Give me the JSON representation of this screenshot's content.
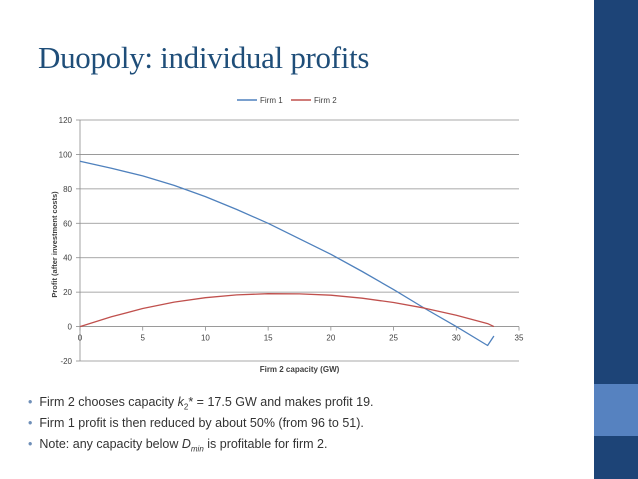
{
  "slide": {
    "title": "Duopoly: individual profits"
  },
  "colors": {
    "title": "#1f4e79",
    "sidebar": [
      "#1d4477",
      "#1d4477",
      "#5682c0",
      "#1d4477"
    ],
    "firm1": "#4f81bd",
    "firm2": "#c0504d"
  },
  "bullets": [
    {
      "pre": "Firm 2 chooses capacity ",
      "var": "k",
      "sub": "2",
      "post": "* = 17.5 GW and makes profit 19."
    },
    {
      "pre": "Firm 1 profit is then reduced by about 50% (from 96 to 51).",
      "var": "",
      "sub": "",
      "post": ""
    },
    {
      "pre": "Note: any capacity below ",
      "var": "D",
      "sub": "min",
      "post": " is profitable for firm 2."
    }
  ],
  "chart_data": {
    "type": "line",
    "title": "",
    "xlabel": "Firm 2 capacity (GW)",
    "ylabel": "Profit (after investment costs)",
    "xlim": [
      0,
      35
    ],
    "ylim": [
      -20,
      120
    ],
    "xticks": [
      0,
      5,
      10,
      15,
      20,
      25,
      30,
      35
    ],
    "yticks": [
      -20,
      0,
      20,
      40,
      60,
      80,
      100,
      120
    ],
    "grid": true,
    "legend": "top-center",
    "series": [
      {
        "name": "Firm 1",
        "color": "#4f81bd",
        "x": [
          0,
          2.5,
          5,
          7.5,
          10,
          12.5,
          15,
          17.5,
          20,
          22.5,
          25,
          27.5,
          30,
          32.5,
          33
        ],
        "y": [
          96,
          92,
          87.5,
          82,
          75.5,
          68,
          60,
          51,
          42,
          32,
          21.5,
          10.5,
          0,
          -11,
          -5.5
        ]
      },
      {
        "name": "Firm 2",
        "color": "#c0504d",
        "x": [
          0,
          2.5,
          5,
          7.5,
          10,
          12.5,
          15,
          17.5,
          20,
          22.5,
          25,
          27.5,
          30,
          32.5,
          33
        ],
        "y": [
          0,
          5.7,
          10.5,
          14.2,
          16.8,
          18.4,
          19.1,
          19,
          18.2,
          16.5,
          14,
          10.7,
          6.6,
          1.7,
          0
        ]
      }
    ]
  }
}
